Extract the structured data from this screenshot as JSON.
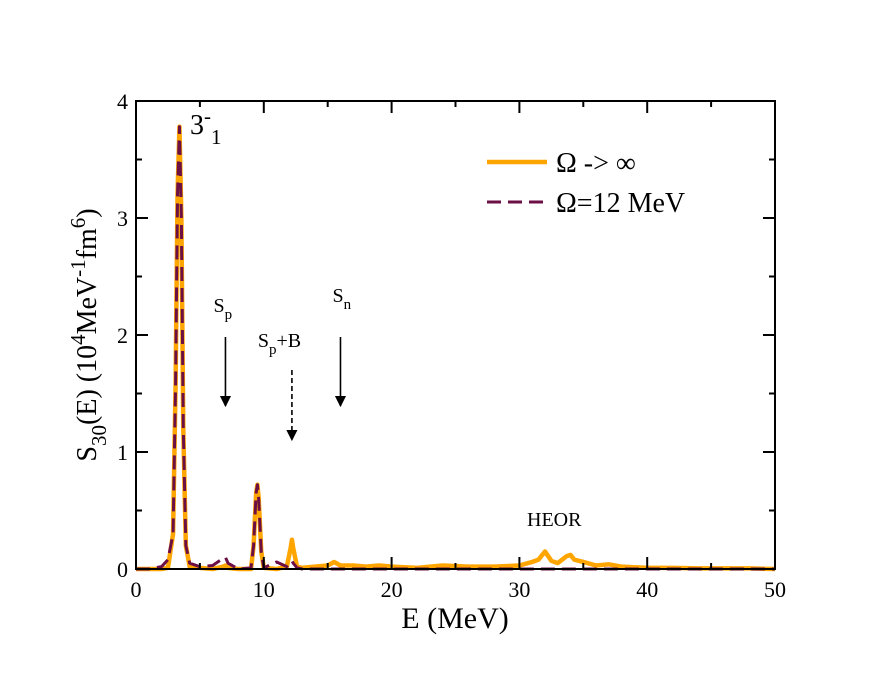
{
  "chart_data": {
    "type": "line",
    "x_label": "E (MeV)",
    "y_label": [
      {
        "text": "S"
      },
      {
        "text": "30",
        "script": "sub"
      },
      {
        "text": "(E) (10"
      },
      {
        "text": "4",
        "script": "sup"
      },
      {
        "text": "MeV"
      },
      {
        "text": "-1",
        "script": "sup"
      },
      {
        "text": "fm"
      },
      {
        "text": "6",
        "script": "sup"
      },
      {
        "text": ")"
      }
    ],
    "xlim": [
      0,
      50
    ],
    "xticks": [
      0,
      10,
      20,
      30,
      40,
      50
    ],
    "xminorticks": [
      5,
      15,
      25,
      35,
      45
    ],
    "ylim": [
      0,
      4
    ],
    "yticks": [
      0,
      1,
      2,
      3,
      4
    ],
    "yminorticks": [
      0.5,
      1.5,
      2.5,
      3.5
    ],
    "legend": "upper right",
    "x": [
      0,
      1,
      2,
      2.5,
      2.9,
      3.1,
      3.25,
      3.4,
      3.55,
      3.7,
      3.9,
      4.2,
      5,
      6,
      6.8,
      7,
      7.2,
      8,
      9,
      9.2,
      9.4,
      9.5,
      9.6,
      9.8,
      10,
      11,
      11.8,
      12.1,
      12.2,
      12.3,
      12.6,
      13,
      14,
      15,
      15.5,
      16,
      17,
      18,
      19,
      20,
      22,
      24,
      26,
      28,
      30,
      31,
      31.5,
      32,
      32.5,
      33,
      33.7,
      34,
      34.3,
      35,
      36,
      37,
      38,
      40,
      42,
      44,
      46,
      48,
      50
    ],
    "series": [
      {
        "name": "Ω -> ∞",
        "color": "#ffa500",
        "dash": false,
        "values": [
          0,
          0,
          0,
          0.01,
          0.3,
          1.6,
          3.2,
          3.78,
          3.0,
          1.2,
          0.2,
          0.02,
          0.01,
          0,
          0.02,
          0.03,
          0.01,
          0,
          0,
          0.2,
          0.65,
          0.72,
          0.6,
          0.15,
          0.01,
          0,
          0.02,
          0.18,
          0.25,
          0.18,
          0.02,
          0.01,
          0.02,
          0.03,
          0.06,
          0.03,
          0.03,
          0.02,
          0.03,
          0.02,
          0.01,
          0.03,
          0.02,
          0.02,
          0.03,
          0.06,
          0.08,
          0.15,
          0.07,
          0.05,
          0.11,
          0.12,
          0.08,
          0.06,
          0.03,
          0.04,
          0.02,
          0.01,
          0.01,
          0.005,
          0.005,
          0.005,
          0
        ]
      },
      {
        "name": "Ω=12 MeV",
        "color": "#6b0f45",
        "dash": true,
        "values": [
          0,
          0,
          0.02,
          0.08,
          0.3,
          1.6,
          3.2,
          3.78,
          3.0,
          1.2,
          0.2,
          0.05,
          0.02,
          0.03,
          0.09,
          0.1,
          0.05,
          0,
          0.01,
          0.2,
          0.65,
          0.72,
          0.6,
          0.15,
          0.01,
          0.06,
          0.02,
          0.06,
          0.07,
          0.05,
          0.01,
          0,
          0,
          0,
          0,
          0,
          0,
          0,
          0,
          0,
          0,
          0,
          0,
          0,
          0,
          0,
          0,
          0,
          0,
          0,
          0,
          0,
          0,
          0,
          0,
          0,
          0,
          0,
          0,
          0,
          0,
          0,
          0
        ]
      }
    ],
    "peak_label": [
      {
        "text": "3"
      },
      {
        "text": "-",
        "script": "sup"
      },
      {
        "text": "1",
        "script": "sub"
      }
    ],
    "region_label": "HEOR",
    "arrows": [
      {
        "x": 7,
        "dashed": false,
        "label": [
          {
            "text": "S"
          },
          {
            "text": "p",
            "script": "sub"
          }
        ]
      },
      {
        "x": 12.2,
        "dashed": true,
        "label": [
          {
            "text": "S"
          },
          {
            "text": "p",
            "script": "sub"
          },
          {
            "text": "+B"
          }
        ]
      },
      {
        "x": 16,
        "dashed": false,
        "label": [
          {
            "text": "S"
          },
          {
            "text": "n",
            "script": "sub"
          }
        ]
      }
    ]
  }
}
